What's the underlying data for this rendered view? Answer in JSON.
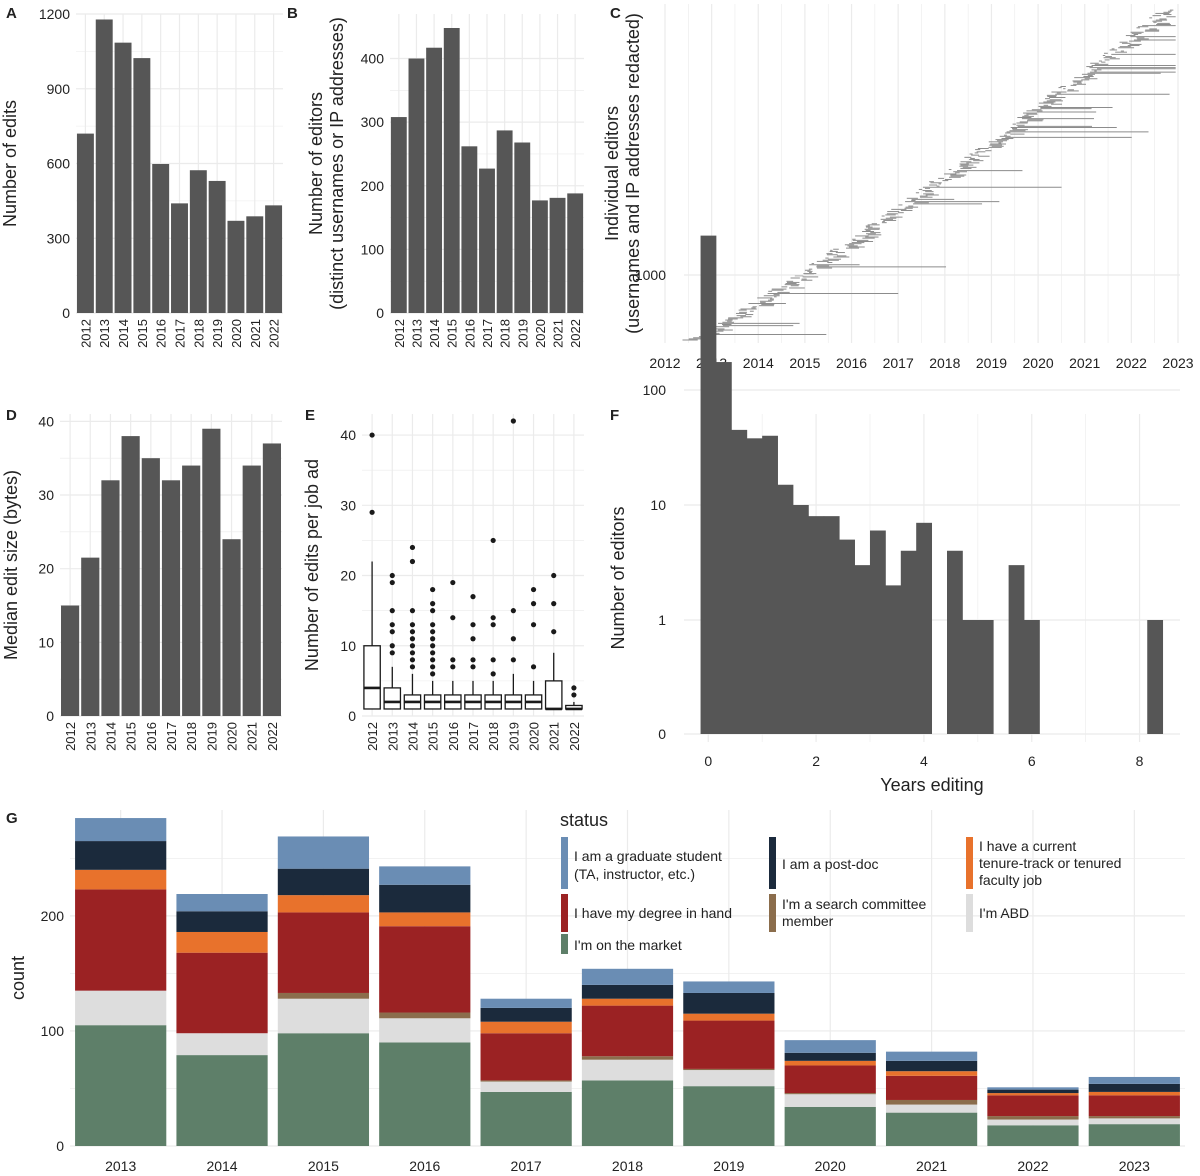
{
  "colors": {
    "bar": "#565656",
    "grid": "#ebebeb",
    "timeline": "#8c8c8c",
    "box": "#1a1a1a"
  },
  "chart_data": [
    {
      "id": "A",
      "panel_label": "A",
      "type": "bar",
      "categories": [
        "2012",
        "2013",
        "2014",
        "2015",
        "2016",
        "2017",
        "2018",
        "2019",
        "2020",
        "2021",
        "2022"
      ],
      "values": [
        720,
        1178,
        1085,
        1023,
        598,
        440,
        573,
        530,
        370,
        388,
        432
      ],
      "title": "",
      "xlabel": "",
      "ylabel": "Number of edits",
      "ylim": [
        0,
        1200
      ],
      "yticks": [
        0,
        300,
        600,
        900,
        1200
      ],
      "grid": true
    },
    {
      "id": "B",
      "panel_label": "B",
      "type": "bar",
      "categories": [
        "2012",
        "2013",
        "2014",
        "2015",
        "2016",
        "2017",
        "2018",
        "2019",
        "2020",
        "2021",
        "2022"
      ],
      "values": [
        308,
        400,
        417,
        448,
        262,
        227,
        287,
        268,
        177,
        181,
        188
      ],
      "title": "",
      "xlabel": "",
      "ylabel": "Number of editors",
      "ylabel2": "(distinct usernames or IP addresses)",
      "ylim": [
        0,
        470
      ],
      "yticks": [
        0,
        100,
        200,
        300,
        400
      ],
      "grid": true
    },
    {
      "id": "C",
      "panel_label": "C",
      "type": "timeline",
      "title": "",
      "xlabel": "",
      "ylabel": "Individual editors",
      "ylabel2": "(usernames and IP addresses redacted)",
      "xlim": [
        2012,
        2023
      ],
      "xticks": [
        "2012",
        "2013",
        "2014",
        "2015",
        "2016",
        "2017",
        "2018",
        "2019",
        "2020",
        "2021",
        "2022",
        "2023"
      ],
      "n_editors": 300,
      "grid": true
    },
    {
      "id": "D",
      "panel_label": "D",
      "type": "bar",
      "categories": [
        "2012",
        "2013",
        "2014",
        "2015",
        "2016",
        "2017",
        "2018",
        "2019",
        "2020",
        "2021",
        "2022"
      ],
      "values": [
        15,
        21.5,
        32,
        38,
        35,
        32,
        34,
        39,
        24,
        34,
        37
      ],
      "title": "",
      "xlabel": "",
      "ylabel": "Median edit size (bytes)",
      "ylim": [
        0,
        41
      ],
      "yticks": [
        0,
        10,
        20,
        30,
        40
      ],
      "grid": true
    },
    {
      "id": "E",
      "panel_label": "E",
      "type": "box",
      "categories": [
        "2012",
        "2013",
        "2014",
        "2015",
        "2016",
        "2017",
        "2018",
        "2019",
        "2020",
        "2021",
        "2022"
      ],
      "boxes": [
        {
          "low": 1,
          "q1": 1,
          "median": 4,
          "q3": 10,
          "high": 22,
          "outliers": [
            29,
            40
          ]
        },
        {
          "low": 1,
          "q1": 1,
          "median": 2,
          "q3": 4,
          "high": 7,
          "outliers": [
            9,
            10,
            12,
            13,
            15,
            19,
            20
          ]
        },
        {
          "low": 1,
          "q1": 1,
          "median": 2,
          "q3": 3,
          "high": 6,
          "outliers": [
            7,
            8,
            9,
            10,
            11,
            12,
            13,
            15,
            22,
            24
          ]
        },
        {
          "low": 1,
          "q1": 1,
          "median": 2,
          "q3": 3,
          "high": 5,
          "outliers": [
            6,
            7,
            8,
            9,
            10,
            11,
            12,
            13,
            15,
            16,
            18
          ]
        },
        {
          "low": 1,
          "q1": 1,
          "median": 2,
          "q3": 3,
          "high": 5,
          "outliers": [
            7,
            8,
            14,
            19
          ]
        },
        {
          "low": 1,
          "q1": 1,
          "median": 2,
          "q3": 3,
          "high": 5,
          "outliers": [
            7,
            8,
            11,
            13,
            17
          ]
        },
        {
          "low": 1,
          "q1": 1,
          "median": 2,
          "q3": 3,
          "high": 5,
          "outliers": [
            6,
            8,
            13,
            14,
            25
          ]
        },
        {
          "low": 1,
          "q1": 1,
          "median": 2,
          "q3": 3,
          "high": 6,
          "outliers": [
            8,
            11,
            15,
            42
          ]
        },
        {
          "low": 1,
          "q1": 1,
          "median": 2,
          "q3": 3,
          "high": 5,
          "outliers": [
            7,
            13,
            16,
            18
          ]
        },
        {
          "low": 1,
          "q1": 1,
          "median": 1,
          "q3": 5,
          "high": 9,
          "outliers": [
            12,
            16,
            20
          ]
        },
        {
          "low": 1,
          "q1": 1,
          "median": 1,
          "q3": 1.5,
          "high": 2,
          "outliers": [
            3,
            4
          ]
        }
      ],
      "title": "",
      "xlabel": "",
      "ylabel": "Number of edits per job ad",
      "ylim": [
        0,
        43
      ],
      "yticks": [
        0,
        10,
        20,
        30,
        40
      ],
      "grid": true
    },
    {
      "id": "F",
      "panel_label": "F",
      "type": "histogram",
      "scale": "log1p",
      "bin_width": 0.2857,
      "x_start": -0.1429,
      "counts": [
        2200,
        175,
        45,
        38,
        40,
        15,
        10,
        8,
        8,
        5,
        3,
        6,
        2,
        4,
        7,
        0,
        4,
        1,
        1,
        0,
        3,
        1,
        0,
        0,
        0,
        0,
        0,
        0,
        0,
        1
      ],
      "title": "",
      "xlabel": "Years editing",
      "ylabel": "Number of editors",
      "xlim": [
        -0.45,
        8.75
      ],
      "xticks": [
        0,
        2,
        4,
        6,
        8
      ],
      "yticks": [
        0,
        1,
        10,
        100,
        1000
      ],
      "grid": true
    },
    {
      "id": "G",
      "panel_label": "G",
      "type": "bar",
      "stacked": true,
      "categories": [
        "2013",
        "2014",
        "2015",
        "2016",
        "2017",
        "2018",
        "2019",
        "2020",
        "2021",
        "2022",
        "2023"
      ],
      "series": [
        {
          "name": "I'm on the market",
          "color": "#5e7f69",
          "values": [
            105,
            79,
            98,
            90,
            47,
            57,
            52,
            34,
            29,
            18,
            19
          ]
        },
        {
          "name": "I'm ABD",
          "color": "#dddddd",
          "values": [
            30,
            19,
            30,
            21,
            9,
            18,
            14,
            11,
            7,
            5,
            5
          ]
        },
        {
          "name": "I'm a search committee member",
          "color": "#8b6d4c",
          "values": [
            0,
            0,
            5,
            5,
            1,
            3,
            1,
            1,
            4,
            3,
            2
          ]
        },
        {
          "name": "I have my degree in hand",
          "color": "#9b2223",
          "values": [
            88,
            70,
            70,
            75,
            41,
            44,
            42,
            24,
            21,
            18,
            18
          ]
        },
        {
          "name": "I have a current tenure-track or tenured faculty job",
          "color": "#e8722c",
          "values": [
            17,
            18,
            15,
            12,
            10,
            6,
            6,
            4,
            4,
            2,
            3
          ]
        },
        {
          "name": "I am a post-doc",
          "color": "#1b2a3c",
          "values": [
            25,
            18,
            23,
            24,
            12,
            12,
            18,
            7,
            9,
            3,
            7
          ]
        },
        {
          "name": "I am a graduate student (TA, instructor, etc.)",
          "color": "#6a8db4",
          "values": [
            20,
            15,
            28,
            16,
            8,
            14,
            10,
            11,
            8,
            2,
            6
          ]
        }
      ],
      "title": "",
      "xlabel": "",
      "ylabel": "count",
      "ylim": [
        0,
        292
      ],
      "yticks": [
        0,
        100,
        200
      ],
      "legend_title": "status",
      "legend_position": "top-right",
      "grid": true
    }
  ],
  "legend": {
    "title": "status",
    "items": [
      {
        "label": "I am a graduate student",
        "label2": "(TA, instructor, etc.)",
        "color": "#6a8db4"
      },
      {
        "label": "I am a post-doc",
        "label2": "",
        "color": "#1b2a3c"
      },
      {
        "label": "I have a current",
        "label2": "tenure-track or tenured",
        "label3": "faculty job",
        "color": "#e8722c"
      },
      {
        "label": "I have my degree in hand",
        "label2": "",
        "color": "#9b2223"
      },
      {
        "label": "I'm a search committee",
        "label2": "member",
        "color": "#8b6d4c"
      },
      {
        "label": "I'm ABD",
        "label2": "",
        "color": "#dddddd"
      },
      {
        "label": "I'm on the market",
        "label2": "",
        "color": "#5e7f69"
      }
    ]
  }
}
